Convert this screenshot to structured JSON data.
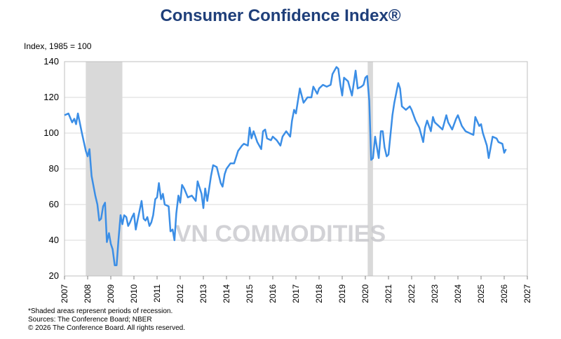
{
  "chart_data": {
    "type": "line",
    "title": "Consumer Confidence Index®",
    "y_label": "Index, 1985 = 100",
    "watermark": "VN COMMODITIES",
    "notes": [
      "*Shaded areas represent periods of recession.",
      "Sources:  The Conference Board;  NBER",
      "© 2026 The Conference Board. All rights reserved."
    ],
    "xlim": [
      2007,
      2027
    ],
    "xticks": [
      2007,
      2008,
      2009,
      2010,
      2011,
      2012,
      2013,
      2014,
      2015,
      2016,
      2017,
      2018,
      2019,
      2020,
      2021,
      2022,
      2023,
      2024,
      2025,
      2026,
      2027
    ],
    "ylim": [
      20,
      140
    ],
    "yticks": [
      20,
      40,
      60,
      80,
      100,
      120,
      140
    ],
    "grid": true,
    "recessions": [
      [
        2007.92,
        2009.5
      ],
      [
        2020.1,
        2020.33
      ]
    ],
    "recession_color": "#d9d9d9",
    "series": [
      {
        "color": "#3b8ee6",
        "x": [
          2007.0,
          2007.17,
          2007.33,
          2007.42,
          2007.5,
          2007.58,
          2007.75,
          2007.92,
          2008.0,
          2008.08,
          2008.17,
          2008.33,
          2008.42,
          2008.5,
          2008.58,
          2008.67,
          2008.75,
          2008.83,
          2008.92,
          2009.0,
          2009.08,
          2009.17,
          2009.25,
          2009.33,
          2009.42,
          2009.5,
          2009.58,
          2009.67,
          2009.75,
          2009.83,
          2009.92,
          2010.0,
          2010.08,
          2010.17,
          2010.25,
          2010.33,
          2010.42,
          2010.5,
          2010.58,
          2010.67,
          2010.75,
          2010.83,
          2010.92,
          2011.0,
          2011.08,
          2011.17,
          2011.25,
          2011.33,
          2011.5,
          2011.58,
          2011.67,
          2011.75,
          2011.83,
          2011.92,
          2012.0,
          2012.08,
          2012.17,
          2012.33,
          2012.5,
          2012.67,
          2012.75,
          2012.92,
          2013.0,
          2013.08,
          2013.17,
          2013.33,
          2013.42,
          2013.58,
          2013.75,
          2013.83,
          2013.92,
          2014.0,
          2014.17,
          2014.33,
          2014.5,
          2014.67,
          2014.75,
          2014.92,
          2015.0,
          2015.08,
          2015.17,
          2015.33,
          2015.5,
          2015.58,
          2015.67,
          2015.75,
          2015.92,
          2016.0,
          2016.17,
          2016.33,
          2016.42,
          2016.58,
          2016.75,
          2016.83,
          2016.92,
          2017.0,
          2017.17,
          2017.33,
          2017.5,
          2017.67,
          2017.75,
          2017.92,
          2018.0,
          2018.17,
          2018.33,
          2018.5,
          2018.58,
          2018.75,
          2018.83,
          2018.92,
          2019.0,
          2019.08,
          2019.25,
          2019.42,
          2019.58,
          2019.67,
          2019.83,
          2019.92,
          2020.0,
          2020.08,
          2020.17,
          2020.25,
          2020.33,
          2020.42,
          2020.5,
          2020.58,
          2020.67,
          2020.75,
          2020.83,
          2020.92,
          2021.0,
          2021.17,
          2021.25,
          2021.42,
          2021.5,
          2021.58,
          2021.75,
          2021.92,
          2022.0,
          2022.17,
          2022.33,
          2022.5,
          2022.58,
          2022.67,
          2022.83,
          2022.92,
          2023.0,
          2023.17,
          2023.33,
          2023.5,
          2023.58,
          2023.75,
          2023.92,
          2024.0,
          2024.17,
          2024.33,
          2024.5,
          2024.67,
          2024.75,
          2024.92,
          2025.0,
          2025.08,
          2025.25,
          2025.33,
          2025.5,
          2025.67,
          2025.75,
          2025.92,
          2026.0,
          2026.08
        ],
        "values": [
          110,
          111,
          106,
          108,
          105,
          111,
          100,
          90,
          87,
          91,
          76,
          65,
          60,
          51,
          52,
          59,
          61,
          39,
          44,
          38,
          35,
          26,
          26,
          40,
          54,
          49,
          54,
          53,
          48,
          50,
          53,
          55,
          46,
          52,
          57,
          62,
          52,
          51,
          53,
          48,
          50,
          54,
          63,
          64,
          72,
          63,
          66,
          60,
          59,
          45,
          46,
          40,
          55,
          65,
          61,
          71,
          69,
          64,
          65,
          62,
          73,
          66,
          58,
          69,
          62,
          76,
          82,
          81,
          72,
          70,
          77,
          80,
          83,
          83,
          90,
          93,
          94,
          93,
          103,
          97,
          101,
          95,
          91,
          101,
          102,
          97,
          96,
          98,
          96,
          93,
          98,
          101,
          98,
          107,
          113,
          111,
          125,
          117,
          120,
          120,
          126,
          122,
          125,
          127,
          126,
          127,
          133,
          137,
          136,
          127,
          121,
          131,
          129,
          121,
          135,
          125,
          126,
          127,
          131,
          132,
          118,
          85,
          86,
          98,
          92,
          86,
          101,
          101,
          92,
          87,
          88,
          110,
          117,
          128,
          125,
          115,
          113,
          115,
          113,
          107,
          103,
          95,
          103,
          107,
          101,
          109,
          106,
          104,
          102,
          110,
          106,
          102,
          108,
          110,
          104,
          101,
          100,
          99,
          109,
          104,
          105,
          100,
          93,
          86,
          98,
          97,
          95,
          94,
          89,
          91
        ]
      }
    ]
  }
}
